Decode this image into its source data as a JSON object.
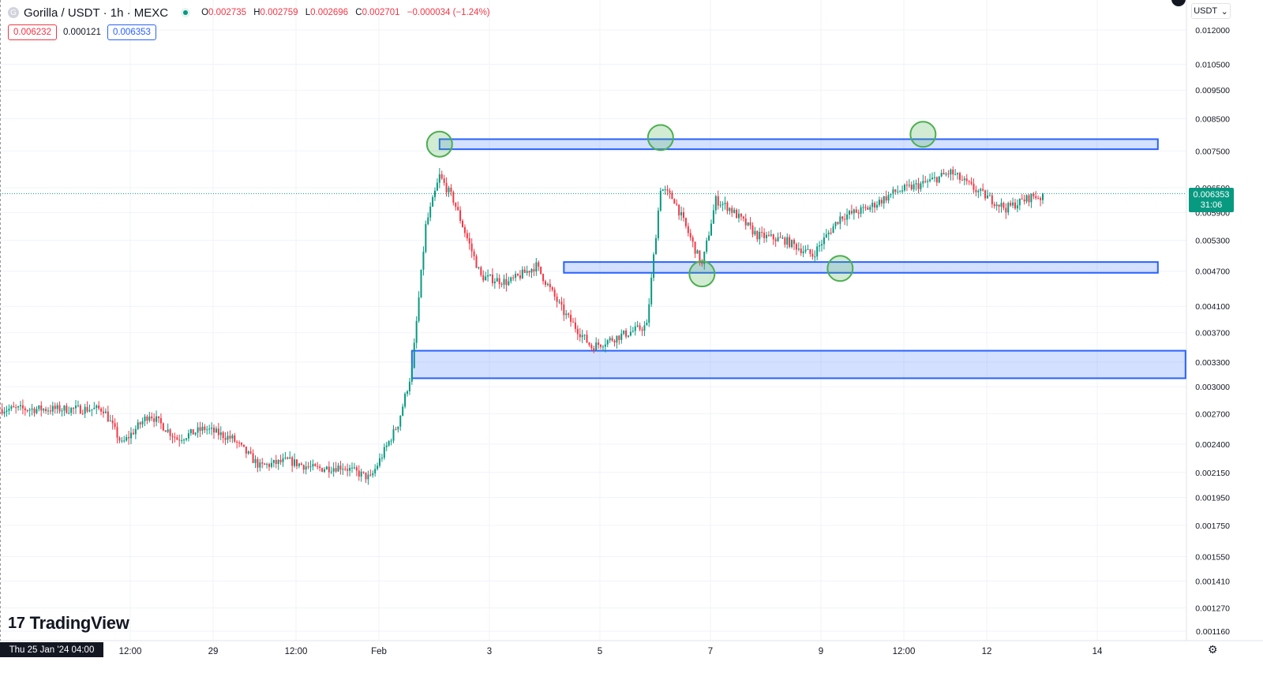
{
  "header": {
    "symbol_icon": "G",
    "title": "Gorilla / USDT · 1h · MEXC",
    "market_status_icon": "market-open-dot",
    "ohlc": {
      "open_label": "O",
      "open": "0.002735",
      "high_label": "H",
      "high": "0.002759",
      "low_label": "L",
      "low": "0.002696",
      "close_label": "C",
      "close": "0.002701",
      "change": "−0.000034 (−1.24%)"
    }
  },
  "quote": {
    "sell": "0.006232",
    "spread": "0.000121",
    "buy": "0.006353"
  },
  "currency_selector": {
    "label": "USDT",
    "icon": "chevron-down-icon"
  },
  "last_price": {
    "value": "0.006353",
    "countdown": "31:06"
  },
  "branding": {
    "logo_mark": "17",
    "logo_text": "TradingView"
  },
  "crosshair_time": "Thu 25 Jan '24  04:00",
  "colors": {
    "up": "#089981",
    "down": "#f23645",
    "zone_fill": "#2962ff",
    "circle": "#4caf50",
    "grid": "#f0f3fa"
  },
  "chart_data": {
    "type": "candlestick",
    "symbol": "Gorilla / USDT",
    "interval": "1h",
    "exchange": "MEXC",
    "y_scale": "log",
    "grid": true,
    "y_ticks": [
      "0.012000",
      "0.010500",
      "0.009500",
      "0.008500",
      "0.007500",
      "0.006500",
      "0.005900",
      "0.005300",
      "0.004700",
      "0.004100",
      "0.003700",
      "0.003300",
      "0.003000",
      "0.002700",
      "0.002400",
      "0.002150",
      "0.001950",
      "0.001750",
      "0.001550",
      "0.001410",
      "0.001270",
      "0.001160"
    ],
    "x_ticks": [
      "12:00",
      "29",
      "12:00",
      "Feb",
      "3",
      "5",
      "7",
      "9",
      "12:00",
      "12",
      "14"
    ],
    "price_path": [
      [
        "2024-01-25 04:00",
        0.00275
      ],
      [
        "2024-01-25 12:00",
        0.0024
      ],
      [
        "2024-01-26 00:00",
        0.0027
      ],
      [
        "2024-01-26 12:00",
        0.00245
      ],
      [
        "2024-01-27 00:00",
        0.00255
      ],
      [
        "2024-01-27 12:00",
        0.00245
      ],
      [
        "2024-01-28 00:00",
        0.0022
      ],
      [
        "2024-01-28 12:00",
        0.00225
      ],
      [
        "2024-01-29 00:00",
        0.00218
      ],
      [
        "2024-01-29 12:00",
        0.0022
      ],
      [
        "2024-01-30 00:00",
        0.0021
      ],
      [
        "2024-01-30 12:00",
        0.0026
      ],
      [
        "2024-01-30 18:00",
        0.0032
      ],
      [
        "2024-01-31 00:00",
        0.0056
      ],
      [
        "2024-01-31 06:00",
        0.0068
      ],
      [
        "2024-01-31 12:00",
        0.0062
      ],
      [
        "2024-02-01 00:00",
        0.0046
      ],
      [
        "2024-02-01 12:00",
        0.0045
      ],
      [
        "2024-02-02 00:00",
        0.0048
      ],
      [
        "2024-02-02 12:00",
        0.004
      ],
      [
        "2024-02-03 00:00",
        0.0035
      ],
      [
        "2024-02-03 12:00",
        0.00365
      ],
      [
        "2024-02-04 00:00",
        0.0038
      ],
      [
        "2024-02-04 06:00",
        0.0065
      ],
      [
        "2024-02-04 12:00",
        0.0062
      ],
      [
        "2024-02-05 00:00",
        0.0048
      ],
      [
        "2024-02-05 06:00",
        0.0062
      ],
      [
        "2024-02-05 12:00",
        0.006
      ],
      [
        "2024-02-06 00:00",
        0.0054
      ],
      [
        "2024-02-06 12:00",
        0.0053
      ],
      [
        "2024-02-07 00:00",
        0.005
      ],
      [
        "2024-02-07 12:00",
        0.0058
      ],
      [
        "2024-02-08 00:00",
        0.006
      ],
      [
        "2024-02-08 12:00",
        0.0064
      ],
      [
        "2024-02-09 00:00",
        0.0066
      ],
      [
        "2024-02-09 12:00",
        0.0069
      ],
      [
        "2024-02-10 00:00",
        0.0064
      ],
      [
        "2024-02-10 12:00",
        0.006
      ],
      [
        "2024-02-11 00:00",
        0.0063
      ],
      [
        "2024-02-11 04:00",
        0.00625
      ]
    ],
    "zones": [
      {
        "from": "2024-01-31 06:00",
        "to": "2024-02-13 06:00",
        "top": 0.00785,
        "bottom": 0.00755
      },
      {
        "from": "2024-02-02 12:00",
        "to": "2024-02-13 06:00",
        "top": 0.00487,
        "bottom": 0.00467
      },
      {
        "from": "2024-01-30 18:00",
        "to": "2024-02-13 18:00",
        "top": 0.00345,
        "bottom": 0.0031
      }
    ],
    "markers": [
      {
        "time": "2024-01-31 06:00",
        "price": 0.0077
      },
      {
        "time": "2024-02-04 06:00",
        "price": 0.0079
      },
      {
        "time": "2024-02-09 00:00",
        "price": 0.008
      },
      {
        "time": "2024-02-05 00:00",
        "price": 0.00465
      },
      {
        "time": "2024-02-07 12:00",
        "price": 0.00475
      }
    ]
  }
}
